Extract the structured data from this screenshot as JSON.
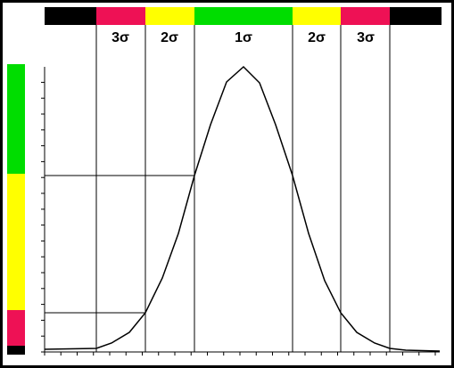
{
  "sigma_labels": [
    "3σ",
    "2σ",
    "1σ",
    "2σ",
    "3σ"
  ]
}
